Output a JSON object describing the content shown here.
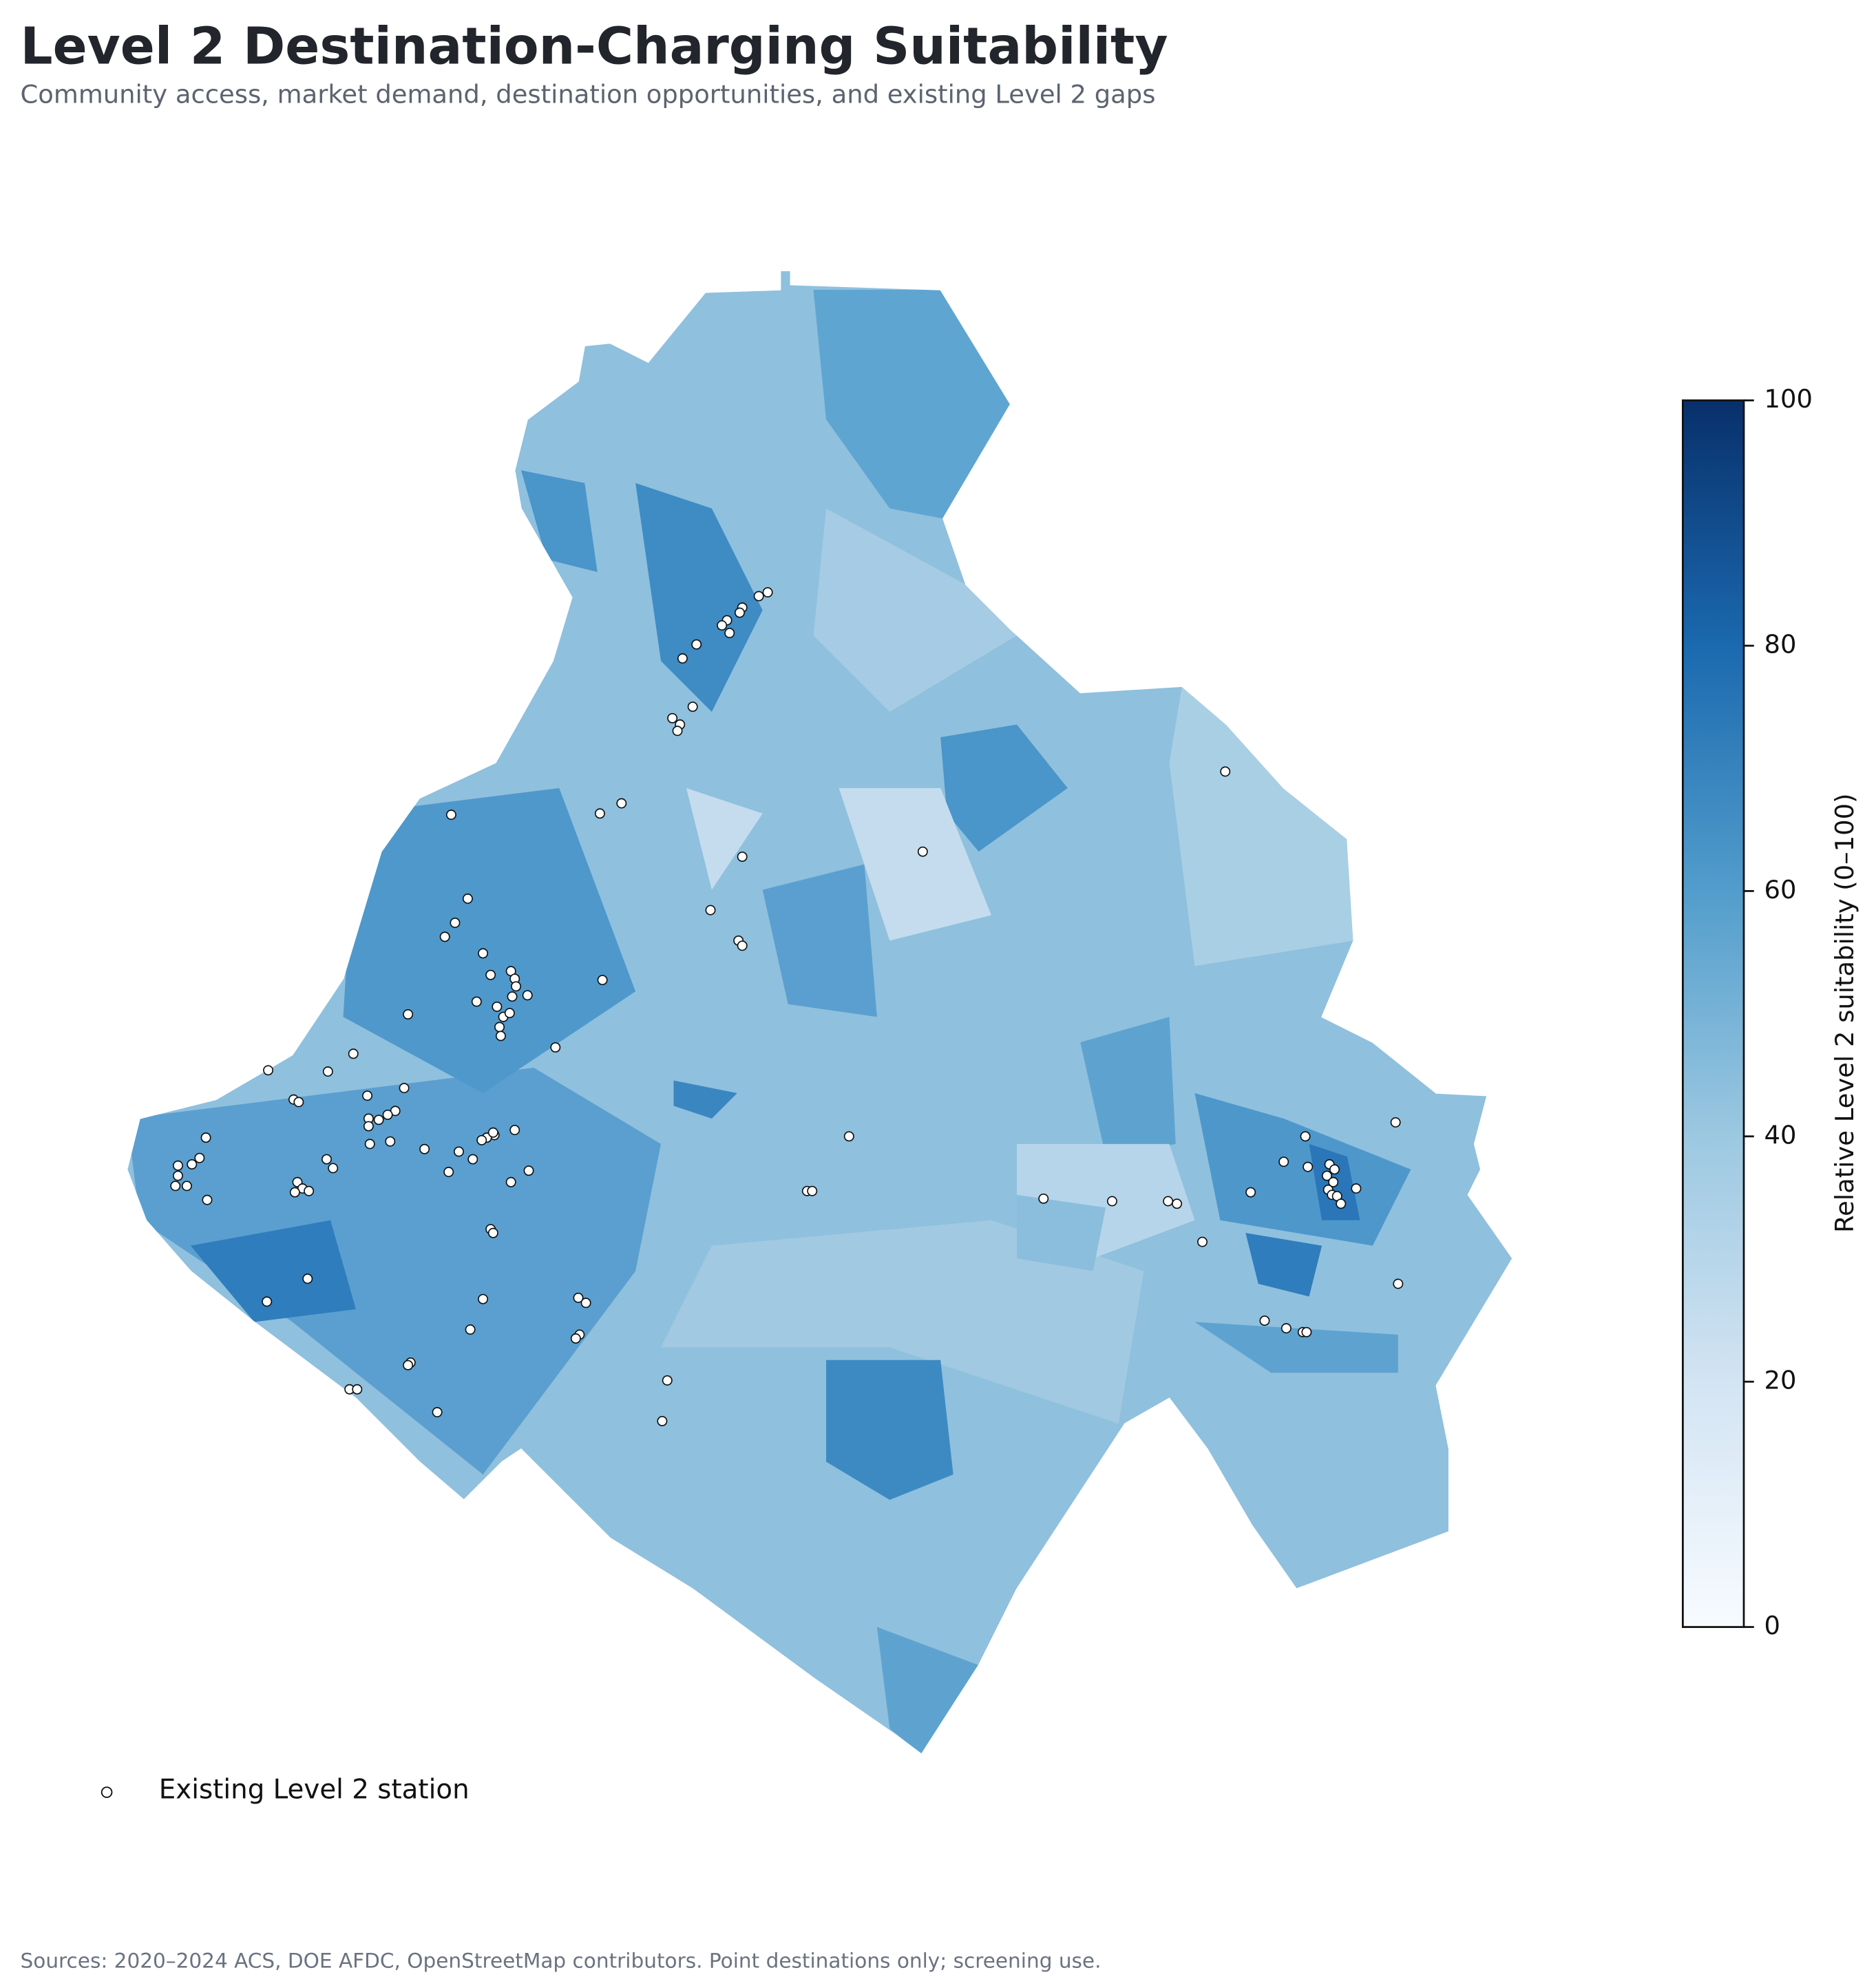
{
  "title": "Level 2 Destination-Charging Suitability",
  "subtitle": "Community access, market demand, destination opportunities, and existing Level 2 gaps",
  "legend": {
    "label": "Existing Level 2 station"
  },
  "colorbar": {
    "label": "Relative Level 2 suitability (0–100)",
    "lim": [
      0,
      100
    ],
    "ticks": [
      0,
      20,
      40,
      60,
      80,
      100
    ]
  },
  "source": "Sources: 2020–2024 ACS, DOE AFDC, OpenStreetMap contributors. Point destinations only; screening use."
}
